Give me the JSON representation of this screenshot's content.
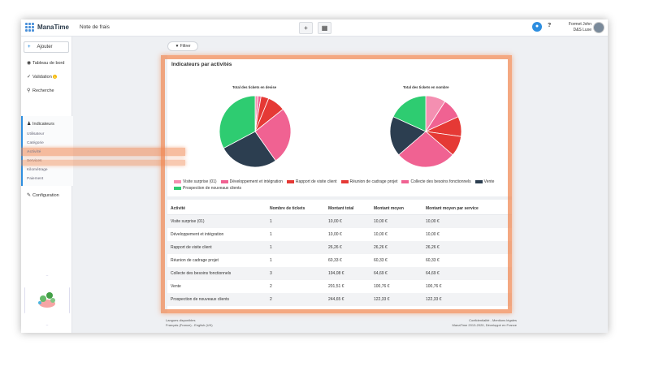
{
  "app": {
    "brand": "ManaTime",
    "page_title": "Note de frais"
  },
  "topbar": {
    "user_name": "Formet John",
    "user_company": "D&S Luxe",
    "help": "?"
  },
  "sidebar": {
    "add_label": "Ajouter",
    "items": [
      {
        "label": "Tableau de bord",
        "icon": "palette-icon"
      },
      {
        "label": "Validation",
        "icon": "check-icon",
        "badge": "1"
      },
      {
        "label": "Recherche",
        "icon": "search-icon"
      },
      {
        "label": "Indicateurs",
        "icon": "users-icon"
      },
      {
        "label": "Configuration",
        "icon": "wrench-icon"
      }
    ],
    "subitems": [
      "Utilisateur",
      "Catégorie",
      "Activité",
      "Services",
      "Kilométrage",
      "Paiement"
    ],
    "active_subitem": "Activité"
  },
  "filter_label": "Filtrer",
  "panel": {
    "title": "Indicateurs par activités",
    "chart1_title": "Total des tickets en devise",
    "chart2_title": "Total des tickets en nombre"
  },
  "legend": [
    {
      "label": "Visite surprise (01)",
      "color": "#f48fb1"
    },
    {
      "label": "Développement et intégration",
      "color": "#f06292"
    },
    {
      "label": "Rapport de visite client",
      "color": "#e53935"
    },
    {
      "label": "Réunion de cadrage projet",
      "color": "#e53935"
    },
    {
      "label": "Collecte des besoins fonctionnels",
      "color": "#f06292"
    },
    {
      "label": "Vente",
      "color": "#2c3e50"
    },
    {
      "label": "Prospection de nouveaux clients",
      "color": "#2ecc71"
    }
  ],
  "chart_data": [
    {
      "type": "pie",
      "title": "Total des tickets en devise",
      "slices": [
        {
          "label": "Visite surprise (01)",
          "value": 10.0,
          "color": "#f48fb1"
        },
        {
          "label": "Développement et intégration",
          "value": 10.0,
          "color": "#f06292"
        },
        {
          "label": "Rapport de visite client",
          "value": 26.26,
          "color": "#e53935"
        },
        {
          "label": "Réunion de cadrage projet",
          "value": 60.33,
          "color": "#e53935"
        },
        {
          "label": "Collecte des besoins fonctionnels",
          "value": 194.08,
          "color": "#f06292"
        },
        {
          "label": "Vente",
          "value": 201.51,
          "color": "#2c3e50"
        },
        {
          "label": "Prospection de nouveaux clients",
          "value": 244.65,
          "color": "#2ecc71"
        }
      ]
    },
    {
      "type": "pie",
      "title": "Total des tickets en nombre",
      "slices": [
        {
          "label": "Visite surprise (01)",
          "value": 1,
          "color": "#f48fb1"
        },
        {
          "label": "Développement et intégration",
          "value": 1,
          "color": "#f06292"
        },
        {
          "label": "Rapport de visite client",
          "value": 1,
          "color": "#e53935"
        },
        {
          "label": "Réunion de cadrage projet",
          "value": 1,
          "color": "#e53935"
        },
        {
          "label": "Collecte des besoins fonctionnels",
          "value": 3,
          "color": "#f06292"
        },
        {
          "label": "Vente",
          "value": 2,
          "color": "#2c3e50"
        },
        {
          "label": "Prospection de nouveaux clients",
          "value": 2,
          "color": "#2ecc71"
        }
      ]
    }
  ],
  "table": {
    "headers": [
      "Activité",
      "Nombre de tickets",
      "Montant total",
      "Montant moyen",
      "Montant moyen par service"
    ],
    "rows": [
      [
        "Visite surprise (01)",
        "1",
        "10,00 €",
        "10,00 €",
        "10,00 €"
      ],
      [
        "Développement et intégration",
        "1",
        "10,00 €",
        "10,00 €",
        "10,00 €"
      ],
      [
        "Rapport de visite client",
        "1",
        "26,26 €",
        "26,26 €",
        "26,26 €"
      ],
      [
        "Réunion de cadrage projet",
        "1",
        "60,33 €",
        "60,33 €",
        "60,33 €"
      ],
      [
        "Collecte des besoins fonctionnels",
        "3",
        "194,08 €",
        "64,69 €",
        "64,69 €"
      ],
      [
        "Vente",
        "2",
        "201,51 €",
        "100,76 €",
        "100,76 €"
      ],
      [
        "Prospection de nouveaux clients",
        "2",
        "244,65 €",
        "122,33 €",
        "122,33 €"
      ]
    ]
  },
  "footer": {
    "left1": "Langues disponibles",
    "left2": "Français (France) - English (UK)",
    "right1": "Confidentialité - Mentions légales",
    "right2": "ManaTime 2013-2020, Développé en France"
  }
}
